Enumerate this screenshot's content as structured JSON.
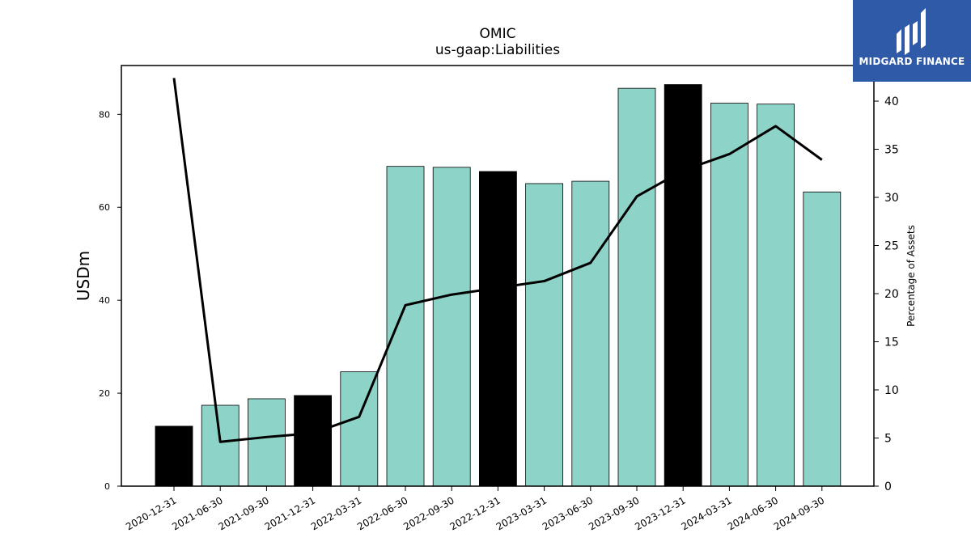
{
  "chart_data": {
    "type": "bar",
    "title": "OMIC",
    "subtitle": "us-gaap:Liabilities",
    "ylabel": "USDm",
    "y2label": "Percentage of Assets",
    "ylim": [
      0,
      90.5
    ],
    "y2lim": [
      0,
      43.7
    ],
    "yticks": [
      0,
      20,
      40,
      60,
      80
    ],
    "y2ticks": [
      0,
      5,
      10,
      15,
      20,
      25,
      30,
      35,
      40
    ],
    "categories": [
      "2020-12-31",
      "2021-06-30",
      "2021-09-30",
      "2021-12-31",
      "2022-03-31",
      "2022-06-30",
      "2022-09-30",
      "2022-12-31",
      "2023-03-31",
      "2023-06-30",
      "2023-09-30",
      "2023-12-31",
      "2024-03-31",
      "2024-06-30",
      "2024-09-30"
    ],
    "series": [
      {
        "type": "bar",
        "axis": "left",
        "values": [
          12.9,
          17.4,
          18.8,
          19.5,
          24.6,
          68.8,
          68.6,
          67.7,
          65.1,
          65.6,
          85.6,
          86.4,
          82.4,
          82.2,
          63.3
        ]
      },
      {
        "type": "line",
        "axis": "right",
        "values": [
          42.4,
          4.6,
          5.1,
          5.5,
          7.2,
          18.8,
          19.9,
          20.6,
          21.3,
          23.2,
          30.1,
          32.8,
          34.5,
          37.4,
          33.9
        ]
      }
    ],
    "highlight_indices": [
      0,
      3,
      7,
      11
    ],
    "colors": {
      "bar": "#8dd3c7",
      "highlight": "#000000",
      "line": "#000000",
      "edge": "#000000"
    },
    "grid": false
  },
  "logo": {
    "text": "MIDGARD FINANCE",
    "color": "#2f5aa8"
  }
}
